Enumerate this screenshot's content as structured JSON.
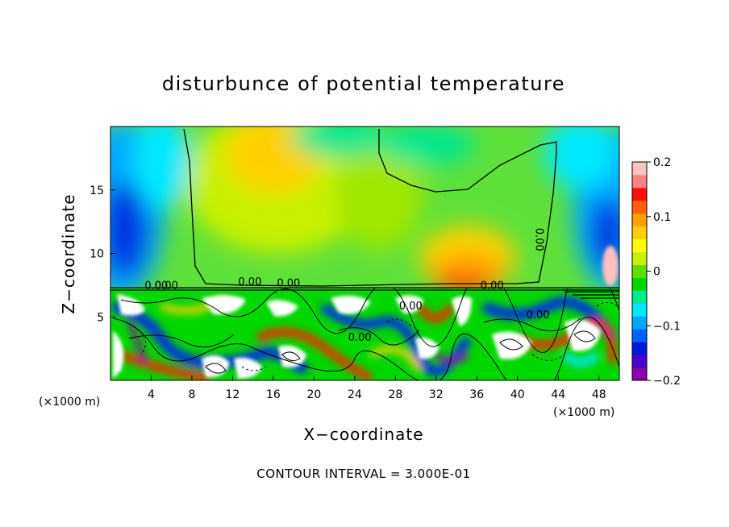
{
  "chart_data": {
    "type": "heatmap",
    "title": "disturbunce of potential temperature",
    "xlabel": "X−coordinate",
    "ylabel": "Z−coordinate",
    "x_unit": "(×1000 m)",
    "x_unit_right": "(×1000 m)",
    "xlim": [
      0,
      50
    ],
    "ylim": [
      0,
      20
    ],
    "x_ticks": [
      4,
      8,
      12,
      16,
      20,
      24,
      28,
      32,
      36,
      40,
      44,
      48
    ],
    "y_ticks": [
      5,
      10,
      15
    ],
    "colorbar": {
      "range": [
        -0.2,
        0.2
      ],
      "ticks": [
        0.2,
        0.1,
        0,
        -0.1,
        -0.2
      ],
      "tick_labels": [
        "0.2",
        "0.1",
        "0",
        "−0.1",
        "−0.2"
      ],
      "colors": [
        "#8b00a8",
        "#4b00d0",
        "#0018d8",
        "#0060ff",
        "#00a8ff",
        "#00e8ff",
        "#00e890",
        "#00d800",
        "#60e000",
        "#c8f000",
        "#ffff00",
        "#ffd000",
        "#ffa000",
        "#ff6000",
        "#ff1000",
        "#ff8080",
        "#ffc0c0"
      ]
    },
    "contour_interval_text": "CONTOUR INTERVAL = 3.000E-01",
    "contour_labels": [
      "0.00",
      "0.00",
      "0.00",
      "0.00",
      "0.00",
      "0.00",
      "0.00",
      "0.00",
      "0.00"
    ],
    "grid": false
  }
}
